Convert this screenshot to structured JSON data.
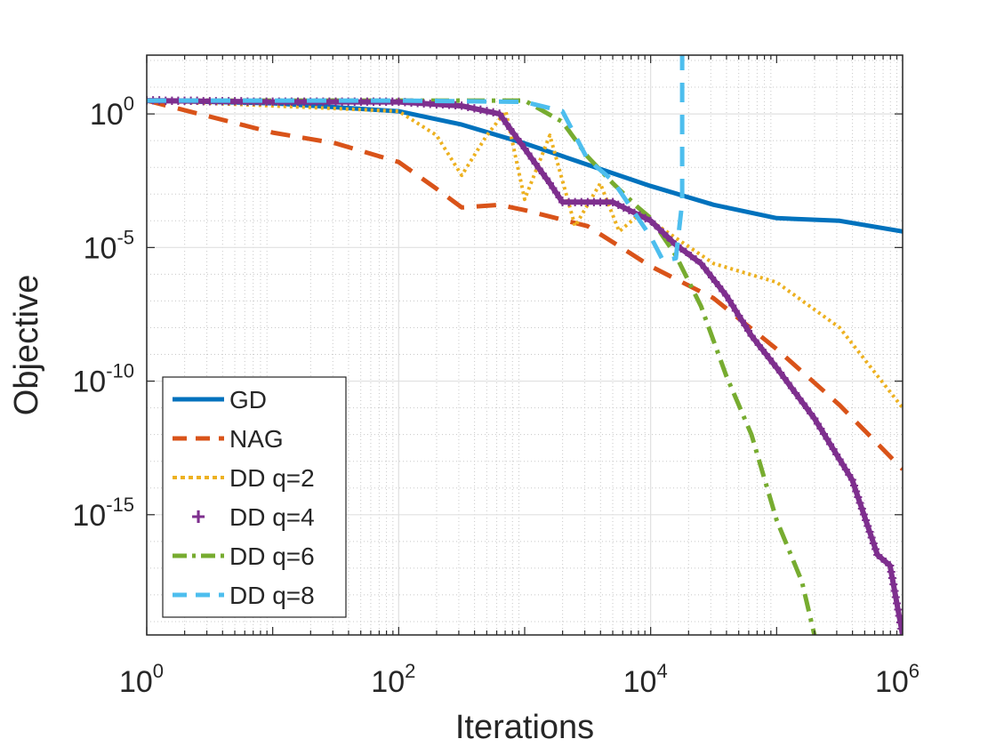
{
  "chart_data": {
    "type": "line",
    "title": "",
    "xlabel": "Iterations",
    "ylabel": "Objective",
    "xscale": "log",
    "yscale": "log",
    "xlim_exp": [
      0,
      6
    ],
    "ylim_exp": [
      -19.5,
      2.2
    ],
    "grid": true,
    "legend_position": "bottom-left",
    "x_ticks": [
      {
        "base": "10",
        "exp": "0",
        "value_exp": 0
      },
      {
        "base": "10",
        "exp": "2",
        "value_exp": 2
      },
      {
        "base": "10",
        "exp": "4",
        "value_exp": 4
      },
      {
        "base": "10",
        "exp": "6",
        "value_exp": 6
      }
    ],
    "y_ticks": [
      {
        "base": "10",
        "exp": "0",
        "value_exp": 0
      },
      {
        "base": "10",
        "exp": "-5",
        "value_exp": -5
      },
      {
        "base": "10",
        "exp": "-10",
        "value_exp": -10
      },
      {
        "base": "10",
        "exp": "-15",
        "value_exp": -15
      }
    ],
    "series": [
      {
        "name": "GD",
        "color": "#0072BD",
        "style": "solid",
        "points_log10": [
          [
            0,
            0.5
          ],
          [
            1,
            0.4
          ],
          [
            2,
            0.1
          ],
          [
            2.5,
            -0.4
          ],
          [
            3,
            -1.1
          ],
          [
            3.5,
            -1.9
          ],
          [
            4,
            -2.7
          ],
          [
            4.5,
            -3.4
          ],
          [
            5,
            -3.9
          ],
          [
            5.5,
            -4.0
          ],
          [
            6,
            -4.4
          ]
        ]
      },
      {
        "name": "NAG",
        "color": "#D95319",
        "style": "dashed",
        "points_log10": [
          [
            0,
            0.5
          ],
          [
            0.5,
            -0.1
          ],
          [
            1,
            -0.7
          ],
          [
            1.5,
            -1.1
          ],
          [
            2,
            -1.8
          ],
          [
            2.3,
            -2.8
          ],
          [
            2.5,
            -3.5
          ],
          [
            2.8,
            -3.4
          ],
          [
            3,
            -3.6
          ],
          [
            3.5,
            -4.2
          ],
          [
            4,
            -5.7
          ],
          [
            4.5,
            -6.9
          ],
          [
            5,
            -8.8
          ],
          [
            5.5,
            -10.9
          ],
          [
            6,
            -13.3
          ]
        ]
      },
      {
        "name": "DD q=2",
        "color": "#EDB120",
        "style": "dotted",
        "points_log10": [
          [
            0,
            0.5
          ],
          [
            1,
            0.3
          ],
          [
            2,
            0.1
          ],
          [
            2.3,
            -0.8
          ],
          [
            2.5,
            -2.3
          ],
          [
            2.7,
            -0.8
          ],
          [
            2.85,
            0.1
          ],
          [
            3,
            -3.2
          ],
          [
            3.2,
            -0.8
          ],
          [
            3.4,
            -4.2
          ],
          [
            3.6,
            -2.6
          ],
          [
            3.75,
            -4.4
          ],
          [
            3.9,
            -3.8
          ],
          [
            4,
            -4.0
          ],
          [
            4.5,
            -5.6
          ],
          [
            5,
            -6.3
          ],
          [
            5.5,
            -8.0
          ],
          [
            6,
            -11.0
          ]
        ]
      },
      {
        "name": "DD q=4",
        "color": "#7E2F8E",
        "style": "markers",
        "points_log10": [
          [
            0,
            0.5
          ],
          [
            1,
            0.45
          ],
          [
            2,
            0.45
          ],
          [
            2.5,
            0.3
          ],
          [
            2.8,
            0.0
          ],
          [
            3,
            -1.3
          ],
          [
            3.2,
            -2.6
          ],
          [
            3.3,
            -3.3
          ],
          [
            3.5,
            -3.3
          ],
          [
            3.7,
            -3.3
          ],
          [
            4,
            -4.0
          ],
          [
            4.2,
            -4.9
          ],
          [
            4.4,
            -5.6
          ],
          [
            4.6,
            -6.8
          ],
          [
            4.8,
            -8.3
          ],
          [
            5,
            -9.5
          ],
          [
            5.3,
            -11.4
          ],
          [
            5.6,
            -13.7
          ],
          [
            5.8,
            -16.5
          ],
          [
            5.9,
            -16.9
          ],
          [
            6,
            -19.5
          ]
        ]
      },
      {
        "name": "DD q=6",
        "color": "#77AC30",
        "style": "dashdot",
        "points_log10": [
          [
            0,
            0.5
          ],
          [
            2,
            0.5
          ],
          [
            3,
            0.5
          ],
          [
            3.3,
            -0.3
          ],
          [
            3.5,
            -1.6
          ],
          [
            3.7,
            -2.6
          ],
          [
            3.9,
            -3.5
          ],
          [
            4,
            -3.9
          ],
          [
            4.2,
            -5.3
          ],
          [
            4.4,
            -7.2
          ],
          [
            4.6,
            -9.8
          ],
          [
            4.8,
            -12.0
          ],
          [
            5,
            -15.2
          ],
          [
            5.2,
            -17.5
          ],
          [
            5.3,
            -19.5
          ]
        ]
      },
      {
        "name": "DD q=8",
        "color": "#4DBEEE",
        "style": "dashed",
        "points_log10": [
          [
            0,
            0.5
          ],
          [
            2,
            0.5
          ],
          [
            3,
            0.45
          ],
          [
            3.3,
            0.1
          ],
          [
            3.5,
            -1.7
          ],
          [
            3.7,
            -2.5
          ],
          [
            3.9,
            -3.9
          ],
          [
            4,
            -4.6
          ],
          [
            4.1,
            -5.5
          ],
          [
            4.2,
            -5.4
          ],
          [
            4.25,
            -3.3
          ],
          [
            4.25,
            2.2
          ]
        ]
      }
    ]
  }
}
